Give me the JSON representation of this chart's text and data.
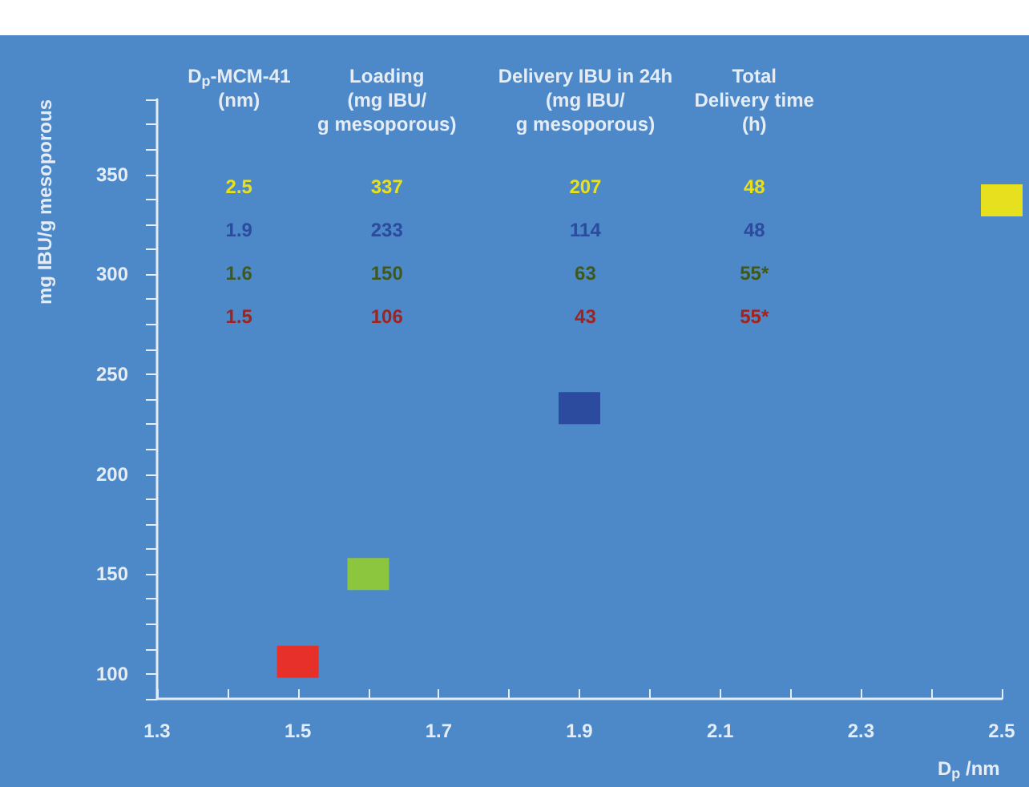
{
  "chart_data": {
    "type": "scatter",
    "xlabel": "D$_{p}$ /nm",
    "ylabel": "mg IBU/g mesoporous",
    "marker": "square",
    "xlim": [
      1.3,
      2.5
    ],
    "xticks": [
      1.3,
      {
        "value": 1.4,
        "label": null
      },
      1.5,
      {
        "value": 1.6,
        "label": null
      },
      1.7,
      {
        "value": 1.8,
        "label": null
      },
      1.9,
      {
        "value": 2.0,
        "label": null
      },
      2.1,
      {
        "value": 2.2,
        "label": null
      },
      2.3,
      {
        "value": 2.4,
        "label": null
      },
      2.5
    ],
    "ylim": [
      87.5,
      387.5
    ],
    "yticks": [
      {
        "value": 87.5,
        "label": null
      },
      100,
      {
        "value": 112.5,
        "label": null
      },
      {
        "value": 125,
        "label": null
      },
      {
        "value": 137.5,
        "label": null
      },
      150,
      {
        "value": 162.5,
        "label": null
      },
      {
        "value": 175,
        "label": null
      },
      {
        "value": 187.5,
        "label": null
      },
      200,
      {
        "value": 212.5,
        "label": null
      },
      {
        "value": 225,
        "label": null
      },
      {
        "value": 237.5,
        "label": null
      },
      250,
      {
        "value": 262.5,
        "label": null
      },
      {
        "value": 275,
        "label": null
      },
      {
        "value": 287.5,
        "label": null
      },
      300,
      {
        "value": 312.5,
        "label": null
      },
      {
        "value": 325,
        "label": null
      },
      {
        "value": 337.5,
        "label": null
      },
      350,
      {
        "value": 362.5,
        "label": null
      },
      {
        "value": 375,
        "label": null
      },
      {
        "value": 387.5,
        "label": null
      }
    ],
    "series": [
      {
        "color": "#e6e01e",
        "x": [
          2.5
        ],
        "values": [
          337
        ]
      },
      {
        "color": "#2c4a9e",
        "x": [
          1.9
        ],
        "values": [
          233
        ]
      },
      {
        "color": "#8cc63e",
        "x": [
          1.6
        ],
        "values": [
          150
        ]
      },
      {
        "color": "#e8302a",
        "x": [
          1.5
        ],
        "values": [
          106
        ]
      }
    ],
    "annotations": [
      "D$_{p}$-MCM-41\n(nm)",
      "Loading\n(mg IBU/\ng mesoporous)",
      "Delivery IBU in 24h\n(mg IBU/\ng mesoporous)",
      "Total\nDelivery time\n(h)",
      "2.5",
      "337",
      "207",
      "48",
      "1.9",
      "233",
      "114",
      "48",
      "1.6",
      "150",
      "63",
      "55*",
      "1.5",
      "106",
      "43",
      "55*"
    ]
  }
}
